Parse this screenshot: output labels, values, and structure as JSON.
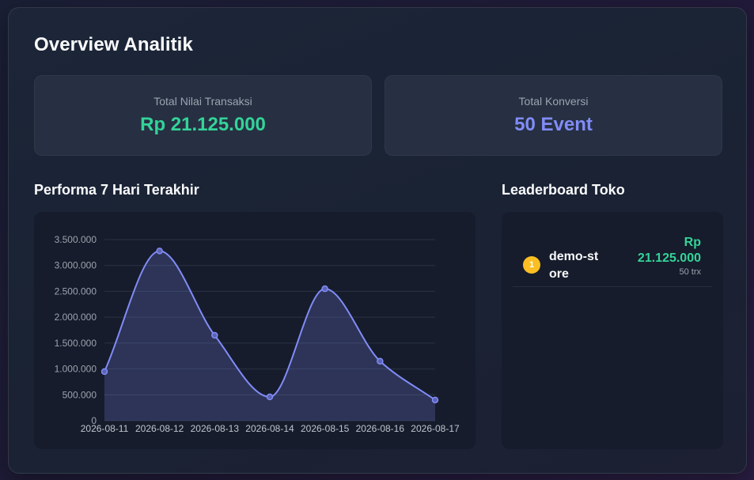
{
  "header": {
    "title": "Overview Analitik"
  },
  "stats": [
    {
      "label": "Total Nilai Transaksi",
      "value": "Rp 21.125.000",
      "color": "#34d399"
    },
    {
      "label": "Total Konversi",
      "value": "50 Event",
      "color": "#818cf8"
    }
  ],
  "chart_section": {
    "title": "Performa 7 Hari Terakhir"
  },
  "chart_data": {
    "type": "area",
    "title": "",
    "xlabel": "",
    "ylabel": "",
    "categories": [
      "2026-08-11",
      "2026-08-12",
      "2026-08-13",
      "2026-08-14",
      "2026-08-15",
      "2026-08-16",
      "2026-08-17"
    ],
    "series": [
      {
        "values": [
          950000,
          3280000,
          1650000,
          460000,
          2550000,
          1150000,
          400000
        ],
        "color": "#818cf8"
      }
    ],
    "ylim": [
      0,
      3500000
    ],
    "yticks": [
      "0",
      "500.000",
      "1.000.000",
      "1.500.000",
      "2.000.000",
      "2.500.000",
      "3.000.000",
      "3.500.000"
    ],
    "grid": true,
    "legend": "none"
  },
  "leaderboard": {
    "title": "Leaderboard Toko",
    "items": [
      {
        "rank": "1",
        "name": "demo-store",
        "amount": "Rp 21.125.000",
        "trx": "50 trx"
      }
    ]
  }
}
